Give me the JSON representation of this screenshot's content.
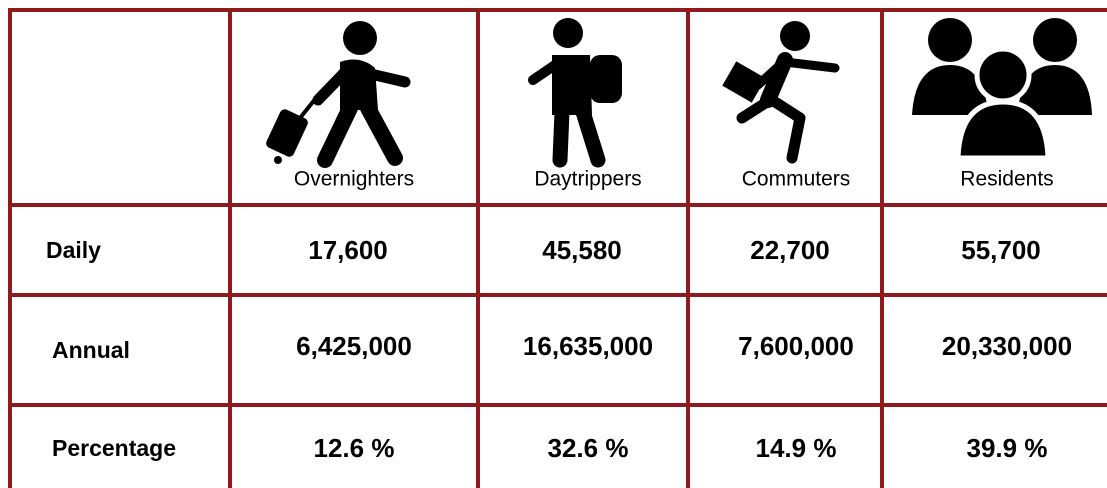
{
  "table": {
    "columns": [
      "Overnighters",
      "Daytrippers",
      "Commuters",
      "Residents"
    ],
    "rows": [
      {
        "label": "Daily",
        "values": [
          "17,600",
          "45,580",
          "22,700",
          "55,700"
        ]
      },
      {
        "label": "Annual",
        "values": [
          "6,425,000",
          "16,635,000",
          "7,600,000",
          "20,330,000"
        ]
      },
      {
        "label": "Percentage",
        "values": [
          "12.6 %",
          "32.6 %",
          "14.9 %",
          "39.9 %"
        ]
      }
    ]
  }
}
